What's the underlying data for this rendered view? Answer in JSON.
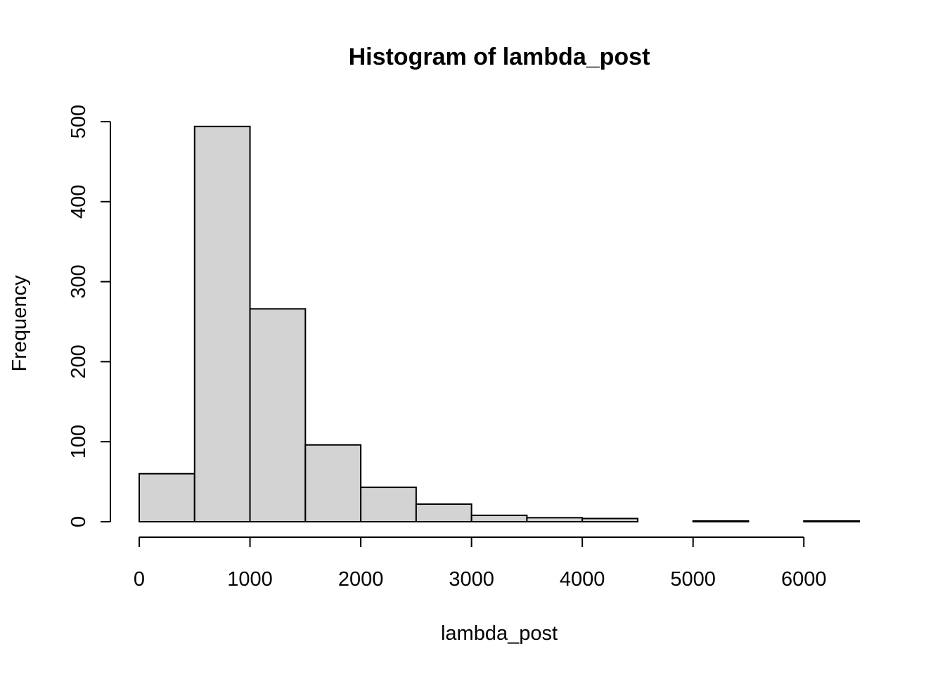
{
  "chart_data": {
    "type": "bar",
    "title": "Histogram of lambda_post",
    "xlabel": "lambda_post",
    "ylabel": "Frequency",
    "bin_edges": [
      0,
      500,
      1000,
      1500,
      2000,
      2500,
      3000,
      3500,
      4000,
      4500,
      5000,
      5500,
      6000,
      6500
    ],
    "values": [
      60,
      494,
      266,
      96,
      43,
      22,
      8,
      5,
      4,
      0,
      1,
      0,
      1
    ],
    "x_ticks": [
      0,
      1000,
      2000,
      3000,
      4000,
      5000,
      6000
    ],
    "y_ticks": [
      0,
      100,
      200,
      300,
      400,
      500
    ],
    "xlim": [
      0,
      6500
    ],
    "ylim": [
      0,
      500
    ],
    "grid": false,
    "bar_color": "#d3d3d3",
    "edge_color": "#000000"
  }
}
